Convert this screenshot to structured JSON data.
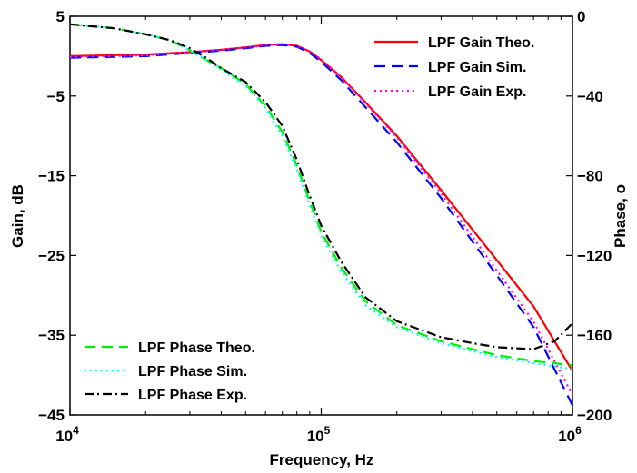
{
  "chart_data": {
    "type": "line",
    "xlabel": "Frequency, Hz",
    "ylabel": "Gain, dB",
    "y2label": "Phase, o",
    "x_scale": "log",
    "xlim": [
      10000,
      1000000
    ],
    "ylim": [
      -45,
      5
    ],
    "y2lim": [
      -200,
      0
    ],
    "x_ticks": [
      {
        "value": 10000,
        "base": "10",
        "exp": "4"
      },
      {
        "value": 100000,
        "base": "10",
        "exp": "5"
      },
      {
        "value": 1000000,
        "base": "10",
        "exp": "6"
      }
    ],
    "y_ticks": [
      {
        "value": 5,
        "label": "5"
      },
      {
        "value": -5,
        "label": "−5"
      },
      {
        "value": -15,
        "label": "−15"
      },
      {
        "value": -25,
        "label": "−25"
      },
      {
        "value": -35,
        "label": "−35"
      },
      {
        "value": -45,
        "label": "−45"
      }
    ],
    "y2_ticks": [
      {
        "value": 0,
        "label": "0"
      },
      {
        "value": -40,
        "label": "−40"
      },
      {
        "value": -80,
        "label": "−80"
      },
      {
        "value": -120,
        "label": "−120"
      },
      {
        "value": -160,
        "label": "−160"
      },
      {
        "value": -200,
        "label": "−200"
      }
    ],
    "grid": false,
    "legend_gain_position": "top-right",
    "legend_phase_position": "bottom-left",
    "series": [
      {
        "name": "LPF Gain Theo.",
        "axis": "left",
        "color": "#ff0000",
        "style": "solid",
        "x": [
          10000,
          20000,
          30000,
          40000,
          50000,
          60000,
          70000,
          80000,
          90000,
          100000,
          120000,
          150000,
          200000,
          300000,
          500000,
          700000,
          1000000
        ],
        "y": [
          0.0,
          0.2,
          0.5,
          0.8,
          1.1,
          1.4,
          1.5,
          1.3,
          0.6,
          -0.5,
          -2.6,
          -5.8,
          -10.0,
          -16.8,
          -25.6,
          -31.4,
          -39.5
        ]
      },
      {
        "name": "LPF Gain Sim.",
        "axis": "left",
        "color": "#0000ff",
        "style": "dashed",
        "x": [
          10000,
          20000,
          30000,
          40000,
          50000,
          60000,
          70000,
          80000,
          90000,
          100000,
          120000,
          150000,
          200000,
          300000,
          500000,
          700000,
          1000000
        ],
        "y": [
          -0.2,
          0.0,
          0.4,
          0.7,
          1.0,
          1.3,
          1.4,
          1.2,
          0.4,
          -0.7,
          -3.0,
          -6.4,
          -10.8,
          -17.8,
          -27.5,
          -34.0,
          -43.8
        ]
      },
      {
        "name": "LPF Gain Exp.",
        "axis": "left",
        "color": "#ff00ff",
        "style": "dotted",
        "x": [
          10000,
          20000,
          30000,
          40000,
          50000,
          60000,
          70000,
          80000,
          90000,
          100000,
          120000,
          150000,
          200000,
          300000,
          500000,
          700000,
          1000000
        ],
        "y": [
          -0.1,
          0.1,
          0.5,
          0.8,
          1.1,
          1.4,
          1.5,
          1.3,
          0.6,
          -0.4,
          -2.6,
          -5.9,
          -10.2,
          -17.2,
          -26.9,
          -33.3,
          -42.5
        ]
      },
      {
        "name": "LPF Phase Theo.",
        "axis": "right",
        "color": "#00ee00",
        "style": "dashed",
        "x": [
          10000,
          15000,
          20000,
          25000,
          30000,
          35000,
          40000,
          50000,
          60000,
          70000,
          80000,
          90000,
          100000,
          120000,
          150000,
          200000,
          300000,
          400000,
          500000,
          700000,
          1000000
        ],
        "y": [
          -4,
          -6,
          -9,
          -12,
          -17,
          -22,
          -26,
          -34,
          -45,
          -58,
          -75,
          -93,
          -108,
          -126,
          -143,
          -155,
          -163,
          -167,
          -170,
          -173,
          -175
        ]
      },
      {
        "name": "LPF Phase Sim.",
        "axis": "right",
        "color": "#00ffff",
        "style": "dotted",
        "x": [
          10000,
          15000,
          20000,
          25000,
          30000,
          35000,
          40000,
          50000,
          60000,
          70000,
          80000,
          90000,
          100000,
          120000,
          150000,
          200000,
          300000,
          400000,
          500000,
          700000,
          1000000
        ],
        "y": [
          -4,
          -6,
          -9,
          -12,
          -17,
          -22,
          -27,
          -35,
          -46,
          -60,
          -77,
          -95,
          -110,
          -128,
          -145,
          -156,
          -164,
          -168,
          -171,
          -174,
          -177
        ]
      },
      {
        "name": "LPF Phase Exp.",
        "axis": "right",
        "color": "#000000",
        "style": "dashdot",
        "x": [
          10000,
          15000,
          20000,
          25000,
          30000,
          35000,
          40000,
          50000,
          60000,
          70000,
          80000,
          90000,
          100000,
          120000,
          150000,
          200000,
          300000,
          400000,
          500000,
          700000,
          850000,
          1000000
        ],
        "y": [
          -4,
          -6,
          -9,
          -12,
          -16,
          -21,
          -26,
          -33,
          -43,
          -55,
          -72,
          -90,
          -105,
          -123,
          -141,
          -153,
          -161,
          -164,
          -166,
          -167,
          -163,
          -154
        ]
      }
    ]
  }
}
